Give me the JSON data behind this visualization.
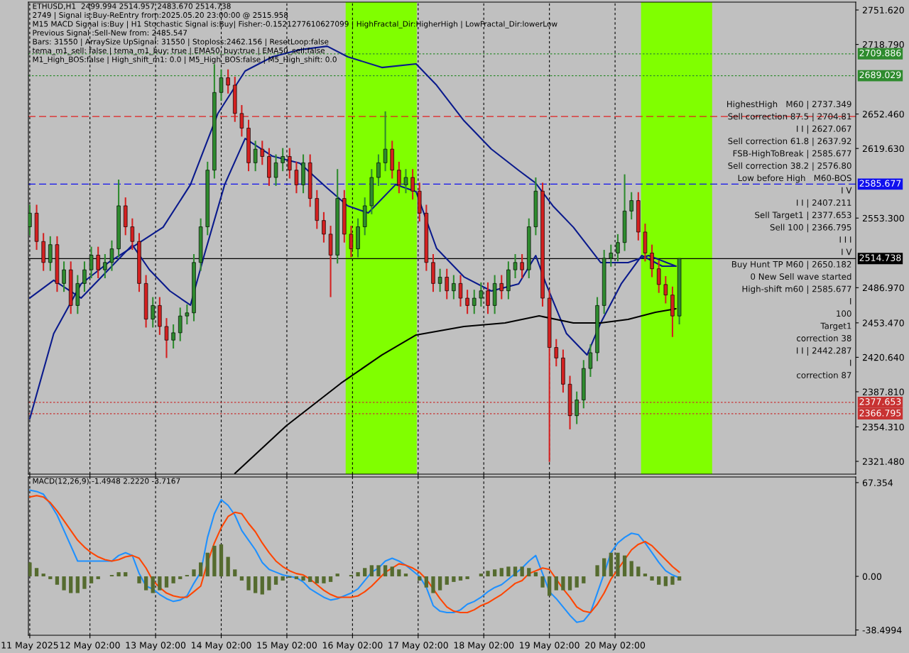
{
  "chart_data": [
    {
      "type": "candlestick",
      "title": "ETHUSD,H1  2499.994 2514.957 2483.670 2514.738",
      "x": [
        "2025-05-11T04:00",
        "2025-05-11T06:30",
        "2025-05-11T09:00",
        "2025-05-11T11:30",
        "2025-05-11T14:00",
        "2025-05-11T16:30",
        "2025-05-11T19:00",
        "2025-05-11T21:30",
        "2025-05-12T00:00",
        "2025-05-12T02:30",
        "2025-05-12T05:00",
        "2025-05-12T07:30",
        "2025-05-12T10:00",
        "2025-05-12T12:30",
        "2025-05-12T15:00",
        "2025-05-12T17:30",
        "2025-05-12T20:00",
        "2025-05-12T22:30",
        "2025-05-13T01:00",
        "2025-05-13T03:30",
        "2025-05-13T06:00",
        "2025-05-13T08:30",
        "2025-05-13T11:00",
        "2025-05-13T13:30",
        "2025-05-13T16:00",
        "2025-05-13T18:30",
        "2025-05-13T21:00",
        "2025-05-13T23:30",
        "2025-05-14T02:00",
        "2025-05-14T04:30",
        "2025-05-14T07:00",
        "2025-05-14T09:30",
        "2025-05-14T12:00",
        "2025-05-14T14:30",
        "2025-05-14T17:00",
        "2025-05-14T19:30",
        "2025-05-14T22:00",
        "2025-05-15T00:30",
        "2025-05-15T03:00",
        "2025-05-15T05:30",
        "2025-05-15T08:00",
        "2025-05-15T10:30",
        "2025-05-15T13:00",
        "2025-05-15T15:30",
        "2025-05-15T18:00",
        "2025-05-15T20:30",
        "2025-05-15T23:00",
        "2025-05-16T01:30",
        "2025-05-16T04:00",
        "2025-05-16T06:30",
        "2025-05-16T09:00",
        "2025-05-16T11:30",
        "2025-05-16T14:00",
        "2025-05-16T16:30",
        "2025-05-16T19:00",
        "2025-05-16T21:30",
        "2025-05-17T00:00",
        "2025-05-17T02:30",
        "2025-05-17T05:00",
        "2025-05-17T07:30",
        "2025-05-17T10:00",
        "2025-05-17T12:30",
        "2025-05-17T15:00",
        "2025-05-17T17:30",
        "2025-05-17T20:00",
        "2025-05-17T22:30",
        "2025-05-18T01:00",
        "2025-05-18T03:30",
        "2025-05-18T06:00",
        "2025-05-18T08:30",
        "2025-05-18T11:00",
        "2025-05-18T13:30",
        "2025-05-18T16:00",
        "2025-05-18T18:30",
        "2025-05-18T21:00",
        "2025-05-18T23:30",
        "2025-05-19T02:00",
        "2025-05-19T04:30",
        "2025-05-19T07:00",
        "2025-05-19T09:30",
        "2025-05-19T12:00",
        "2025-05-19T14:30",
        "2025-05-19T17:00",
        "2025-05-19T19:30",
        "2025-05-19T22:00",
        "2025-05-20T00:30",
        "2025-05-20T03:00",
        "2025-05-20T05:30",
        "2025-05-20T08:00",
        "2025-05-20T10:30",
        "2025-05-20T13:00",
        "2025-05-20T15:30",
        "2025-05-20T18:00",
        "2025-05-20T20:30",
        "2025-05-20T23:00",
        "2025-05-21T01:30"
      ],
      "ohlc": [
        [
          2545,
          2566,
          2537,
          2558
        ],
        [
          2558,
          2566,
          2523,
          2531
        ],
        [
          2531,
          2539,
          2503,
          2511
        ],
        [
          2511,
          2536,
          2503,
          2528
        ],
        [
          2528,
          2536,
          2483,
          2491
        ],
        [
          2491,
          2512,
          2483,
          2504
        ],
        [
          2504,
          2512,
          2462,
          2470
        ],
        [
          2470,
          2499,
          2462,
          2491
        ],
        [
          2491,
          2512,
          2483,
          2504
        ],
        [
          2504,
          2526,
          2496,
          2518
        ],
        [
          2518,
          2526,
          2496,
          2504
        ],
        [
          2504,
          2519,
          2496,
          2511
        ],
        [
          2511,
          2532,
          2503,
          2524
        ],
        [
          2524,
          2590,
          2516,
          2565
        ],
        [
          2565,
          2573,
          2537,
          2545
        ],
        [
          2545,
          2553,
          2523,
          2531
        ],
        [
          2531,
          2539,
          2483,
          2491
        ],
        [
          2491,
          2499,
          2449,
          2457
        ],
        [
          2457,
          2478,
          2449,
          2470
        ],
        [
          2470,
          2478,
          2442,
          2450
        ],
        [
          2450,
          2458,
          2420,
          2437
        ],
        [
          2437,
          2452,
          2429,
          2444
        ],
        [
          2444,
          2468,
          2436,
          2460
        ],
        [
          2460,
          2471,
          2452,
          2463
        ],
        [
          2463,
          2519,
          2455,
          2511
        ],
        [
          2511,
          2553,
          2503,
          2545
        ],
        [
          2545,
          2607,
          2537,
          2599
        ],
        [
          2599,
          2700,
          2591,
          2673
        ],
        [
          2673,
          2695,
          2665,
          2687
        ],
        [
          2687,
          2695,
          2672,
          2680
        ],
        [
          2680,
          2688,
          2645,
          2653
        ],
        [
          2653,
          2661,
          2631,
          2639
        ],
        [
          2639,
          2647,
          2598,
          2606
        ],
        [
          2606,
          2627,
          2598,
          2619
        ],
        [
          2619,
          2627,
          2604,
          2612
        ],
        [
          2612,
          2620,
          2584,
          2592
        ],
        [
          2592,
          2614,
          2584,
          2606
        ],
        [
          2606,
          2620,
          2598,
          2612
        ],
        [
          2612,
          2620,
          2591,
          2599
        ],
        [
          2599,
          2607,
          2577,
          2585
        ],
        [
          2585,
          2614,
          2577,
          2606
        ],
        [
          2606,
          2614,
          2564,
          2572
        ],
        [
          2572,
          2580,
          2543,
          2551
        ],
        [
          2551,
          2559,
          2530,
          2538
        ],
        [
          2538,
          2546,
          2478,
          2518
        ],
        [
          2518,
          2600,
          2510,
          2572
        ],
        [
          2572,
          2580,
          2530,
          2538
        ],
        [
          2538,
          2546,
          2516,
          2524
        ],
        [
          2524,
          2553,
          2516,
          2545
        ],
        [
          2545,
          2573,
          2537,
          2565
        ],
        [
          2565,
          2600,
          2557,
          2592
        ],
        [
          2592,
          2614,
          2584,
          2606
        ],
        [
          2606,
          2655,
          2598,
          2619
        ],
        [
          2619,
          2627,
          2591,
          2599
        ],
        [
          2599,
          2607,
          2577,
          2585
        ],
        [
          2585,
          2600,
          2577,
          2592
        ],
        [
          2592,
          2600,
          2571,
          2579
        ],
        [
          2579,
          2587,
          2550,
          2558
        ],
        [
          2558,
          2566,
          2503,
          2511
        ],
        [
          2511,
          2519,
          2483,
          2491
        ],
        [
          2491,
          2505,
          2483,
          2497
        ],
        [
          2497,
          2505,
          2476,
          2484
        ],
        [
          2484,
          2499,
          2476,
          2491
        ],
        [
          2491,
          2499,
          2469,
          2477
        ],
        [
          2477,
          2485,
          2462,
          2470
        ],
        [
          2470,
          2485,
          2462,
          2477
        ],
        [
          2477,
          2492,
          2469,
          2484
        ],
        [
          2484,
          2492,
          2462,
          2470
        ],
        [
          2470,
          2499,
          2462,
          2491
        ],
        [
          2491,
          2499,
          2476,
          2484
        ],
        [
          2484,
          2512,
          2476,
          2504
        ],
        [
          2504,
          2519,
          2496,
          2511
        ],
        [
          2511,
          2519,
          2496,
          2504
        ],
        [
          2504,
          2553,
          2496,
          2545
        ],
        [
          2545,
          2592,
          2537,
          2579
        ],
        [
          2579,
          2587,
          2469,
          2477
        ],
        [
          2477,
          2485,
          2321,
          2430
        ],
        [
          2430,
          2438,
          2412,
          2420
        ],
        [
          2420,
          2428,
          2387,
          2395
        ],
        [
          2395,
          2403,
          2352,
          2365
        ],
        [
          2365,
          2388,
          2357,
          2380
        ],
        [
          2380,
          2418,
          2372,
          2410
        ],
        [
          2410,
          2433,
          2402,
          2425
        ],
        [
          2425,
          2478,
          2417,
          2470
        ],
        [
          2470,
          2523,
          2462,
          2515
        ],
        [
          2515,
          2528,
          2507,
          2520
        ],
        [
          2520,
          2538,
          2512,
          2530
        ],
        [
          2530,
          2595,
          2522,
          2560
        ],
        [
          2560,
          2578,
          2552,
          2570
        ],
        [
          2570,
          2578,
          2532,
          2540
        ],
        [
          2540,
          2548,
          2512,
          2520
        ],
        [
          2520,
          2528,
          2497,
          2505
        ],
        [
          2505,
          2513,
          2482,
          2490
        ],
        [
          2490,
          2498,
          2472,
          2480
        ],
        [
          2480,
          2488,
          2440,
          2460
        ],
        [
          2460,
          2514.957,
          2452,
          2514.738
        ]
      ],
      "colors": [
        "#2e8b2e",
        "#d42020",
        "#d42020",
        "#2e8b2e",
        "#d42020",
        "#2e8b2e",
        "#d42020",
        "#2e8b2e",
        "#2e8b2e",
        "#2e8b2e",
        "#d42020",
        "#2e8b2e",
        "#2e8b2e",
        "#2e8b2e",
        "#d42020",
        "#d42020",
        "#d42020",
        "#d42020",
        "#2e8b2e",
        "#d42020",
        "#d42020",
        "#2e8b2e",
        "#2e8b2e",
        "#2e8b2e",
        "#2e8b2e",
        "#2e8b2e",
        "#2e8b2e",
        "#2e8b2e",
        "#2e8b2e",
        "#d42020",
        "#d42020",
        "#d42020",
        "#d42020",
        "#2e8b2e",
        "#d42020",
        "#d42020",
        "#2e8b2e",
        "#2e8b2e",
        "#d42020",
        "#d42020",
        "#2e8b2e",
        "#d42020",
        "#d42020",
        "#d42020",
        "#d42020",
        "#2e8b2e",
        "#d42020",
        "#d42020",
        "#2e8b2e",
        "#2e8b2e",
        "#2e8b2e",
        "#2e8b2e",
        "#2e8b2e",
        "#d42020",
        "#d42020",
        "#2e8b2e",
        "#d42020",
        "#d42020",
        "#d42020",
        "#d42020",
        "#2e8b2e",
        "#d42020",
        "#2e8b2e",
        "#d42020",
        "#d42020",
        "#2e8b2e",
        "#2e8b2e",
        "#d42020",
        "#2e8b2e",
        "#d42020",
        "#2e8b2e",
        "#2e8b2e",
        "#d42020",
        "#2e8b2e",
        "#2e8b2e",
        "#d42020",
        "#d42020",
        "#d42020",
        "#d42020",
        "#d42020",
        "#2e8b2e",
        "#2e8b2e",
        "#2e8b2e",
        "#2e8b2e",
        "#2e8b2e",
        "#2e8b2e",
        "#2e8b2e",
        "#2e8b2e",
        "#2e8b2e",
        "#d42020",
        "#d42020",
        "#d42020",
        "#d42020",
        "#d42020",
        "#d42020",
        "#2e8b2e"
      ],
      "series": [
        {
          "type": "line",
          "color": "#0a1a8c",
          "x": [
            "2025-05-11T04:00",
            "2025-05-11T12:45",
            "2025-05-11T22:45",
            "2025-05-12T08:45",
            "2025-05-12T18:45",
            "2025-05-13T04:45",
            "2025-05-13T14:45",
            "2025-05-14T00:45",
            "2025-05-14T10:45",
            "2025-05-14T20:45",
            "2025-05-15T06:45",
            "2025-05-15T16:45",
            "2025-05-16T00:15",
            "2025-05-16T12:45",
            "2025-05-17T01:15",
            "2025-05-17T08:45",
            "2025-05-17T18:45",
            "2025-05-18T04:45",
            "2025-05-18T14:45",
            "2025-05-18T21:00",
            "2025-05-19T03:15",
            "2025-05-19T10:45",
            "2025-05-19T20:45",
            "2025-05-20T06:45",
            "2025-05-20T14:15",
            "2025-05-21T00:15"
          ],
          "values": [
            2362.1,
            2443.2,
            2490.6,
            2510.9,
            2527.7,
            2544.6,
            2585.2,
            2652.9,
            2693.5,
            2707.0,
            2713.8,
            2717.1,
            2707.0,
            2696.8,
            2700.2,
            2679.9,
            2646.1,
            2619.1,
            2598.8,
            2586.6,
            2565.0,
            2544.6,
            2510.9,
            2510.9,
            2517.6,
            2507.5
          ]
        },
        {
          "type": "line",
          "color": "#0a1a8c",
          "x": [
            "2025-05-11T04:00",
            "2025-05-11T12:45",
            "2025-05-11T22:45",
            "2025-05-12T08:45",
            "2025-05-12T17:30",
            "2025-05-12T23:45",
            "2025-05-13T07:15",
            "2025-05-13T14:45",
            "2025-05-13T19:45",
            "2025-05-14T03:15",
            "2025-05-14T10:45",
            "2025-05-14T20:45",
            "2025-05-15T06:45",
            "2025-05-15T16:45",
            "2025-05-16T00:15",
            "2025-05-16T07:45",
            "2025-05-16T17:45",
            "2025-05-17T01:15",
            "2025-05-17T08:45",
            "2025-05-17T18:45",
            "2025-05-18T04:45",
            "2025-05-18T14:45",
            "2025-05-18T21:00",
            "2025-05-19T00:45",
            "2025-05-19T08:15",
            "2025-05-19T15:45",
            "2025-05-19T20:45",
            "2025-05-20T04:15",
            "2025-05-20T11:45",
            "2025-05-20T19:15",
            "2025-05-21T00:15"
          ],
          "values": [
            2477.1,
            2494.0,
            2477.1,
            2504.1,
            2527.7,
            2504.1,
            2483.8,
            2470.3,
            2517.6,
            2585.2,
            2629.2,
            2612.3,
            2605.5,
            2581.9,
            2565.0,
            2558.2,
            2585.2,
            2578.5,
            2524.4,
            2497.3,
            2483.8,
            2490.6,
            2517.6,
            2490.6,
            2443.2,
            2422.9,
            2453.4,
            2490.6,
            2517.6,
            2507.5,
            2507.5
          ]
        },
        {
          "type": "line",
          "color": "#000000",
          "x": [
            "2025-05-14T07:00",
            "2025-05-15T01:45",
            "2025-05-15T21:45",
            "2025-05-16T12:45",
            "2025-05-17T01:15",
            "2025-05-17T18:45",
            "2025-05-18T09:45",
            "2025-05-18T22:15",
            "2025-05-19T10:45",
            "2025-05-19T20:45",
            "2025-05-20T06:45",
            "2025-05-20T16:45",
            "2025-05-21T00:15"
          ],
          "values": [
            2310,
            2355.3,
            2395.9,
            2422.9,
            2441.9,
            2450.0,
            2453.4,
            2460.1,
            2453.4,
            2453.4,
            2456.7,
            2463.5,
            2466.9
          ]
        }
      ],
      "xlim": [
        "2025-05-11T03:30",
        "2025-05-23T18:00"
      ],
      "xticks": [
        {
          "value": "2025-05-11T04:00",
          "label": null
        },
        {
          "value": "2025-05-12T02:00",
          "label": null
        },
        {
          "value": "2025-05-13T02:00",
          "label": null
        },
        {
          "value": "2025-05-14T02:00",
          "label": null
        },
        {
          "value": "2025-05-15T02:00",
          "label": null
        },
        {
          "value": "2025-05-16T02:00",
          "label": null
        },
        {
          "value": "2025-05-17T02:00",
          "label": null
        },
        {
          "value": "2025-05-18T02:00",
          "label": null
        },
        {
          "value": "2025-05-19T02:00",
          "label": null
        },
        {
          "value": "2025-05-20T02:00",
          "label": null
        }
      ],
      "ylim": [
        2309.3,
        2759.1
      ],
      "yticks": [
        {
          "value": 2751.62,
          "label": "2751.620"
        },
        {
          "value": 2718.79,
          "label": "2718.790"
        },
        {
          "value": 2652.46,
          "label": "2652.460"
        },
        {
          "value": 2619.63,
          "label": "2619.630"
        },
        {
          "value": 2553.3,
          "label": "2553.300"
        },
        {
          "value": 2486.97,
          "label": "2486.970"
        },
        {
          "value": 2453.47,
          "label": "2453.470"
        },
        {
          "value": 2420.64,
          "label": "2420.640"
        },
        {
          "value": 2387.81,
          "label": "2387.810"
        },
        {
          "value": 2354.31,
          "label": "2354.310"
        },
        {
          "value": 2321.48,
          "label": "2321.480"
        }
      ],
      "tick_labels": "y",
      "grid": "x",
      "bands": [
        {
          "axis": "x",
          "from": "2025-05-15T23:30",
          "to": "2025-05-17T01:30",
          "color": "#80ff00"
        },
        {
          "axis": "x",
          "from": "2025-05-20T11:30",
          "to": "2025-05-21T13:30",
          "color": "#80ff00"
        }
      ],
      "ref_lines": [
        {
          "axis": "y",
          "value": 2709.886,
          "label": "2709.886",
          "color": "#2e8b2e",
          "line_style": "dotted"
        },
        {
          "axis": "y",
          "value": 2689.029,
          "label": "2689.029",
          "color": "#2e8b2e",
          "line_style": "dotted"
        },
        {
          "axis": "y",
          "value": 2650.182,
          "label": null,
          "color": "#e02020",
          "line_style": "dashed"
        },
        {
          "axis": "y",
          "value": 2585.677,
          "label": "2585.677",
          "color": "#1010ee",
          "line_style": "dashed"
        },
        {
          "axis": "y",
          "value": 2514.738,
          "label": "2514.738",
          "color": "#000000",
          "line_style": "solid"
        },
        {
          "axis": "y",
          "value": 2377.653,
          "label": "2377.653",
          "color": "#c83232",
          "line_style": "dotted"
        },
        {
          "axis": "y",
          "value": 2366.795,
          "label": "2366.795",
          "color": "#c83232",
          "line_style": "dotted"
        }
      ],
      "subtitle": "2749 | Signal is:Buy-ReEntry from:2025.05.20 23:00:00 @ 2515.958\nM15 MACD Signal is:Buy | H1 Stochastic Signal is:Buy| Fisher:-0.1521277610627099 | HighFractal_Dir:HigherHigh | LowFractal_Dir:lowerLow\nPrevious Signal :Sell-New from: 2485.547\nBars: 31550 | ArraySize UpSignal: 31550 | Stoploss:2462.156 | ResetLoop:false\ntema_m1_sell: false | tema_m1_buy: true | EMA50_buy:true | EMA50_sell:false\nM1_High_BOS:false | High_shift_m1: 0.0 | M5_High_BOS:false | M5_High_shift: 0.0",
      "annotations": [
        "HighestHigh   M60 | 2737.349",
        "Sell correction 87.5 | 2704.81",
        "I I | 2627.067",
        "Sell correction 61.8 | 2637.92",
        "FSB-HighToBreak | 2585.677",
        "Sell correction 38.2 | 2576.80",
        "Low before High   M60-BOS",
        "I V",
        "I I | 2407.211",
        "Sell Target1 | 2377.653",
        "Sell 100 | 2366.795",
        "I I I",
        "I V",
        "Buy Hunt TP M60 | 2650.182",
        "0 New Sell wave started",
        "High-shift m60 | 2585.677",
        "I",
        "100",
        "Target1",
        "correction 38",
        "I I | 2442.287",
        "I",
        "correction 87"
      ]
    },
    {
      "type": "bar",
      "title": "MACD(12,26,9) -1.4948 2.2220 -3.7167",
      "x": [
        "2025-05-11T04:00",
        "2025-05-11T06:30",
        "2025-05-11T09:00",
        "2025-05-11T11:30",
        "2025-05-11T14:00",
        "2025-05-11T16:30",
        "2025-05-11T19:00",
        "2025-05-11T21:30",
        "2025-05-12T00:00",
        "2025-05-12T02:30",
        "2025-05-12T05:00",
        "2025-05-12T07:30",
        "2025-05-12T10:00",
        "2025-05-12T12:30",
        "2025-05-12T15:00",
        "2025-05-12T17:30",
        "2025-05-12T20:00",
        "2025-05-12T22:30",
        "2025-05-13T01:00",
        "2025-05-13T03:30",
        "2025-05-13T06:00",
        "2025-05-13T08:30",
        "2025-05-13T11:00",
        "2025-05-13T13:30",
        "2025-05-13T16:00",
        "2025-05-13T18:30",
        "2025-05-13T21:00",
        "2025-05-13T23:30",
        "2025-05-14T02:00",
        "2025-05-14T04:30",
        "2025-05-14T07:00",
        "2025-05-14T09:30",
        "2025-05-14T12:00",
        "2025-05-14T14:30",
        "2025-05-14T17:00",
        "2025-05-14T19:30",
        "2025-05-14T22:00",
        "2025-05-15T00:30",
        "2025-05-15T03:00",
        "2025-05-15T05:30",
        "2025-05-15T08:00",
        "2025-05-15T10:30",
        "2025-05-15T13:00",
        "2025-05-15T15:30",
        "2025-05-15T18:00",
        "2025-05-15T20:30",
        "2025-05-15T23:00",
        "2025-05-16T01:30",
        "2025-05-16T04:00",
        "2025-05-16T06:30",
        "2025-05-16T09:00",
        "2025-05-16T11:30",
        "2025-05-16T14:00",
        "2025-05-16T16:30",
        "2025-05-16T19:00",
        "2025-05-16T21:30",
        "2025-05-17T00:00",
        "2025-05-17T02:30",
        "2025-05-17T05:00",
        "2025-05-17T07:30",
        "2025-05-17T10:00",
        "2025-05-17T12:30",
        "2025-05-17T15:00",
        "2025-05-17T17:30",
        "2025-05-17T20:00",
        "2025-05-17T22:30",
        "2025-05-18T01:00",
        "2025-05-18T03:30",
        "2025-05-18T06:00",
        "2025-05-18T08:30",
        "2025-05-18T11:00",
        "2025-05-18T13:30",
        "2025-05-18T16:00",
        "2025-05-18T18:30",
        "2025-05-18T21:00",
        "2025-05-18T23:30",
        "2025-05-19T02:00",
        "2025-05-19T04:30",
        "2025-05-19T07:00",
        "2025-05-19T09:30",
        "2025-05-19T12:00",
        "2025-05-19T14:30",
        "2025-05-19T17:00",
        "2025-05-19T19:30",
        "2025-05-19T22:00",
        "2025-05-20T00:30",
        "2025-05-20T03:00",
        "2025-05-20T05:30",
        "2025-05-20T08:00",
        "2025-05-20T10:30",
        "2025-05-20T13:00",
        "2025-05-20T15:30",
        "2025-05-20T18:00",
        "2025-05-20T20:30",
        "2025-05-20T23:00",
        "2025-05-21T01:30"
      ],
      "series": [
        {
          "type": "bar",
          "color": "#556b2f",
          "values": [
            10,
            6,
            2,
            -2,
            -6,
            -10,
            -12,
            -12,
            -9,
            -5,
            -2,
            0,
            1,
            3,
            3,
            0,
            -5,
            -10,
            -12,
            -10,
            -8,
            -5,
            -2,
            1,
            5,
            10,
            17,
            22,
            23,
            14,
            5,
            -3,
            -10,
            -12,
            -13,
            -10,
            -6,
            -3,
            -1,
            -2,
            -3,
            -4,
            -5,
            -5,
            -4,
            2,
            0,
            1,
            3,
            6,
            8,
            8,
            8,
            7,
            5,
            2,
            0,
            -3,
            -8,
            -12,
            -10,
            -6,
            -4,
            -3,
            -2,
            0,
            2,
            4,
            5,
            6,
            7,
            7,
            7,
            6,
            3,
            -8,
            -14,
            -10,
            -10,
            -10,
            -8,
            -5,
            0,
            8,
            13,
            17,
            17,
            15,
            11,
            7,
            2,
            -3,
            -6,
            -7,
            -6,
            -3
          ]
        },
        {
          "type": "line",
          "color": "#1e90ff",
          "values": [
            62,
            61,
            59,
            52,
            44,
            33,
            22,
            11,
            11,
            11,
            11,
            11,
            11,
            15,
            17,
            15,
            2,
            -7,
            -9,
            -13,
            -16,
            -18,
            -17,
            -14,
            -5,
            3,
            28,
            45,
            55,
            51,
            44,
            33,
            26,
            19,
            10,
            5,
            3,
            1,
            0,
            -1,
            -4,
            -9,
            -12,
            -15,
            -17,
            -16,
            -14,
            -12,
            -9,
            -3,
            3,
            6,
            11,
            13,
            11,
            8,
            4,
            0,
            -8,
            -21,
            -25,
            -26,
            -26,
            -24,
            -20,
            -18,
            -15,
            -11,
            -8,
            -6,
            -2,
            2,
            6,
            11,
            15,
            2,
            -11,
            -16,
            -22,
            -28,
            -33,
            -32,
            -26,
            -12,
            2,
            17,
            24,
            28,
            31,
            30,
            24,
            17,
            10,
            4,
            1,
            -1
          ]
        },
        {
          "type": "line",
          "color": "#ff4500",
          "values": [
            57,
            58,
            57,
            53,
            47,
            40,
            33,
            26,
            21,
            17,
            14,
            12,
            11,
            12,
            14,
            15,
            13,
            6,
            -3,
            -8,
            -12,
            -14,
            -15,
            -15,
            -11,
            -7,
            10,
            24,
            35,
            43,
            46,
            45,
            38,
            32,
            24,
            17,
            11,
            7,
            4,
            2,
            1,
            -2,
            -6,
            -10,
            -13,
            -15,
            -15,
            -15,
            -14,
            -11,
            -7,
            -2,
            3,
            6,
            9,
            8,
            6,
            3,
            -2,
            -9,
            -16,
            -22,
            -25,
            -26,
            -26,
            -24,
            -21,
            -19,
            -16,
            -13,
            -9,
            -5,
            -3,
            2,
            4,
            6,
            5,
            -2,
            -9,
            -15,
            -22,
            -25,
            -26,
            -20,
            -12,
            -2,
            5,
            12,
            19,
            23,
            25,
            22,
            17,
            12,
            7,
            3
          ]
        }
      ],
      "xlim": [
        "2025-05-11T03:30",
        "2025-05-23T18:00"
      ],
      "xticks": [
        {
          "value": "2025-05-11T04:00",
          "label": "11 May 2025"
        },
        {
          "value": "2025-05-12T02:00",
          "label": "12 May 02:00"
        },
        {
          "value": "2025-05-13T02:00",
          "label": "13 May 02:00"
        },
        {
          "value": "2025-05-14T02:00",
          "label": "14 May 02:00"
        },
        {
          "value": "2025-05-15T02:00",
          "label": "15 May 02:00"
        },
        {
          "value": "2025-05-16T02:00",
          "label": "16 May 02:00"
        },
        {
          "value": "2025-05-17T02:00",
          "label": "17 May 02:00"
        },
        {
          "value": "2025-05-18T02:00",
          "label": "18 May 02:00"
        },
        {
          "value": "2025-05-19T02:00",
          "label": "19 May 02:00"
        },
        {
          "value": "2025-05-20T02:00",
          "label": "20 May 02:00"
        }
      ],
      "ylim": [
        -42.3,
        71.4
      ],
      "yticks": [
        67.354,
        {
          "value": 0,
          "label": "0.00"
        },
        -38.4994
      ],
      "grid": "x"
    }
  ]
}
